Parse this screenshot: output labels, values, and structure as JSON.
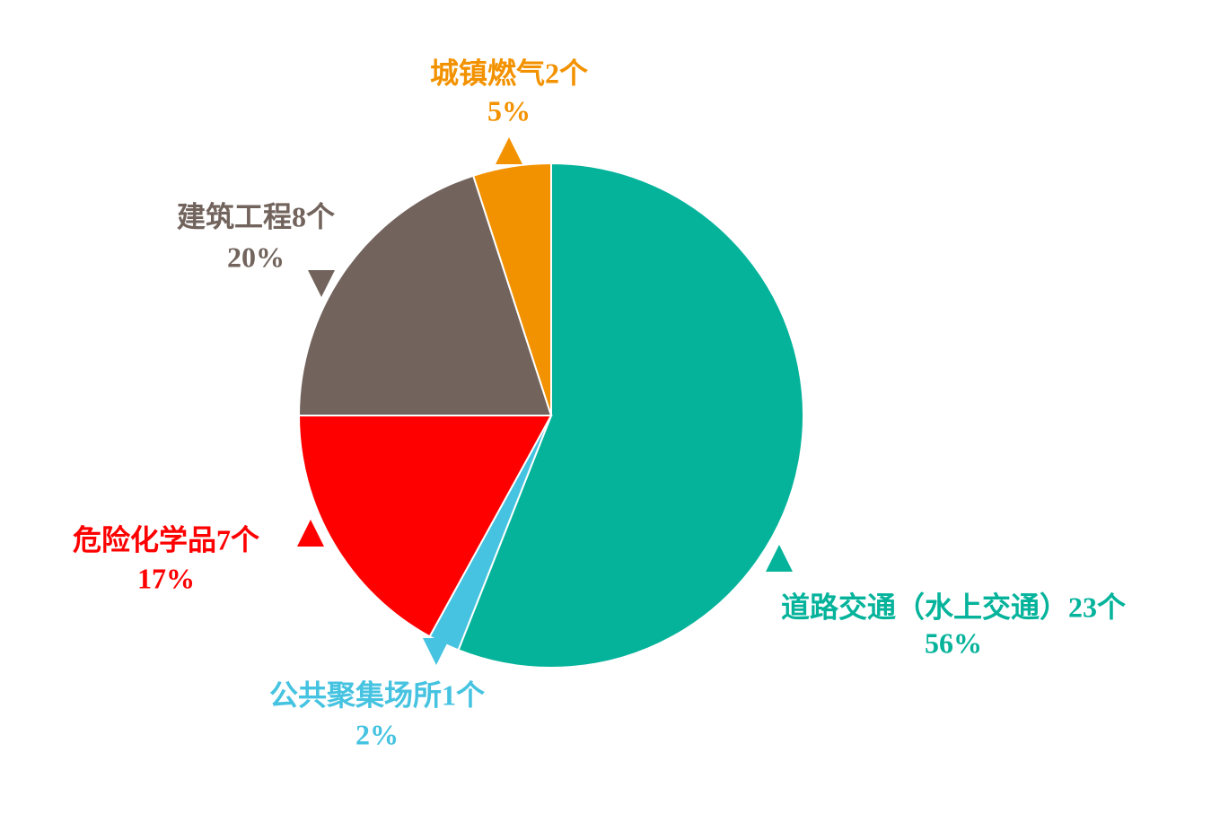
{
  "chart_data": {
    "type": "pie",
    "categories": [
      "道路交通（水上交通）23个",
      "公共聚集场所1个",
      "危险化学品7个",
      "建筑工程8个",
      "城镇燃气2个"
    ],
    "values": [
      56,
      2,
      17,
      20,
      5
    ],
    "value_labels": [
      "56%",
      "2%",
      "17%",
      "20%",
      "5%"
    ],
    "colors": [
      "#05b39b",
      "#45c3e0",
      "#ff0000",
      "#72645d",
      "#f39200"
    ]
  }
}
